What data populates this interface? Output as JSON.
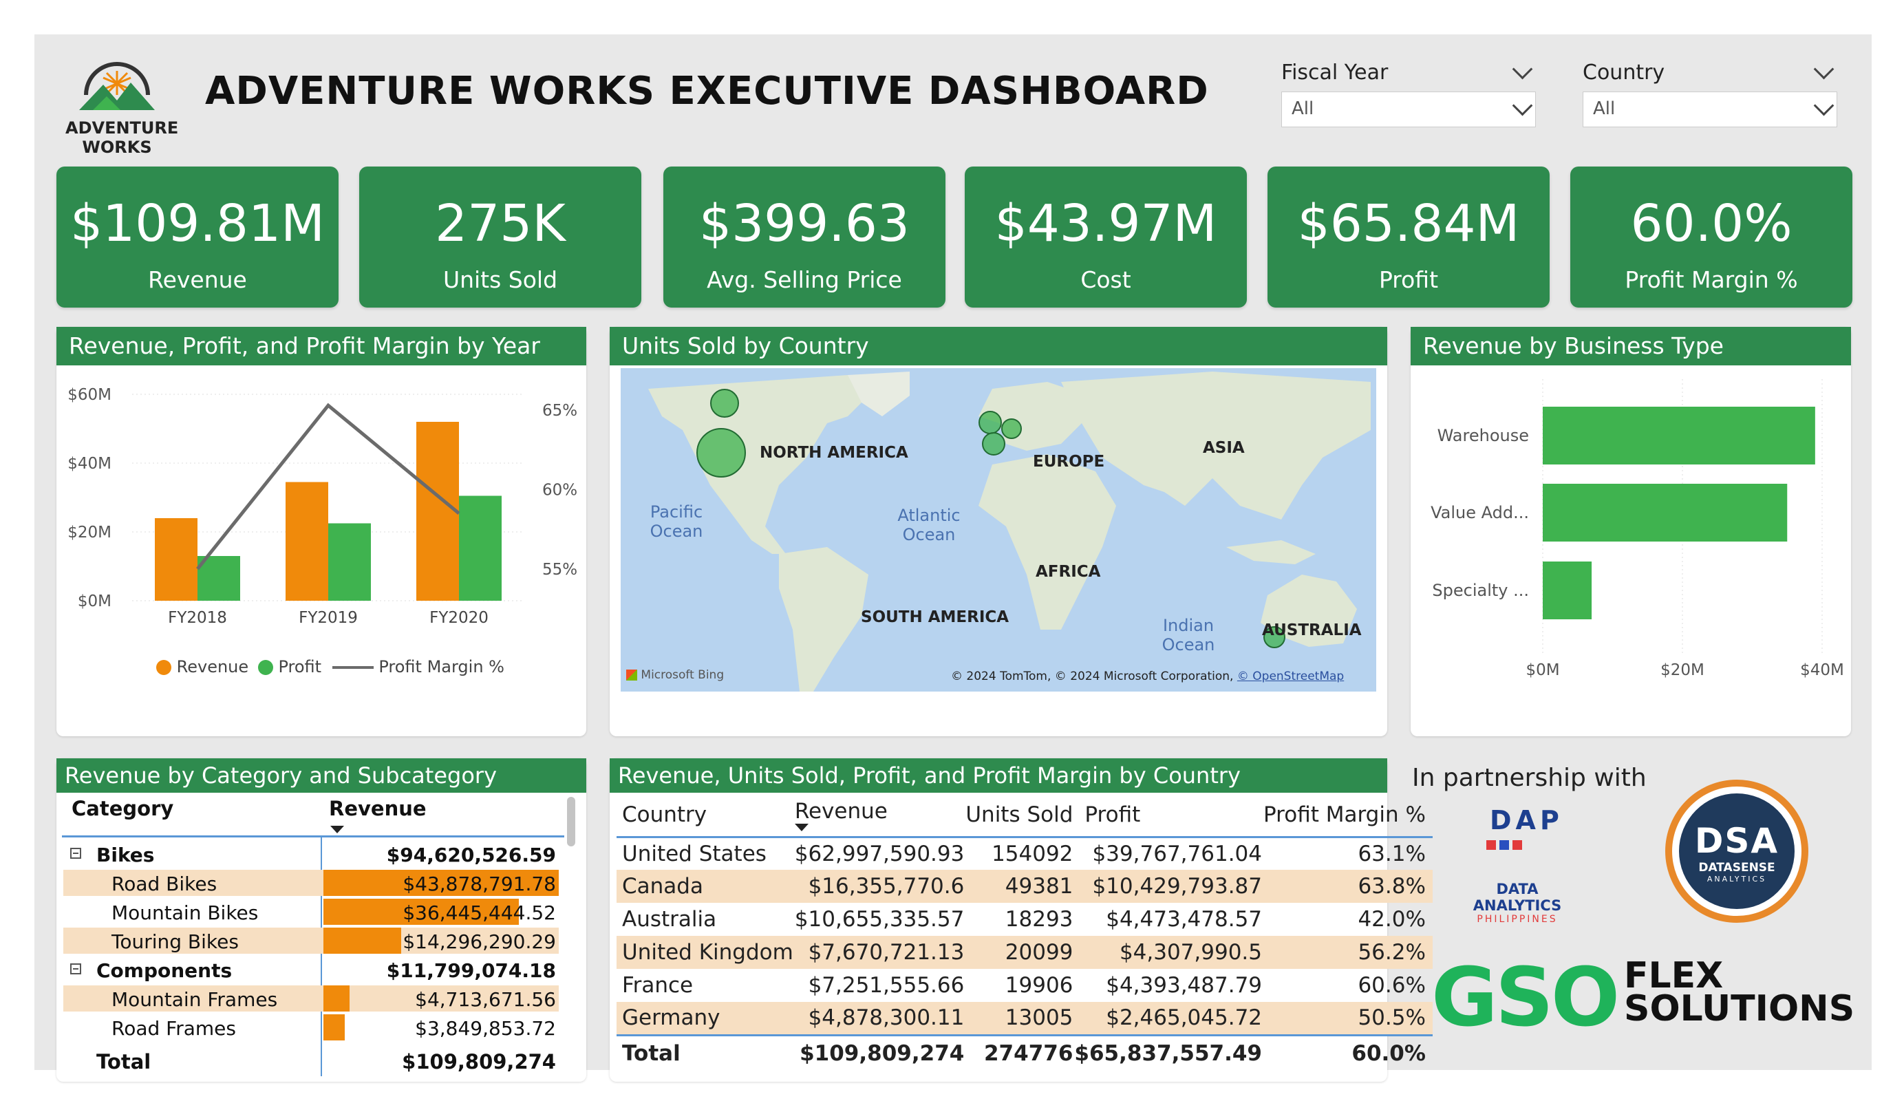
{
  "header": {
    "logo_line1": "ADVENTURE",
    "logo_line2": "WORKS",
    "title": "ADVENTURE WORKS EXECUTIVE DASHBOARD"
  },
  "slicers": [
    {
      "label": "Fiscal Year",
      "value": "All"
    },
    {
      "label": "Country",
      "value": "All"
    }
  ],
  "kpis": [
    {
      "value": "$109.81M",
      "label": "Revenue"
    },
    {
      "value": "275K",
      "label": "Units Sold"
    },
    {
      "value": "$399.63",
      "label": "Avg. Selling Price"
    },
    {
      "value": "$43.97M",
      "label": "Cost"
    },
    {
      "value": "$65.84M",
      "label": "Profit"
    },
    {
      "value": "60.0%",
      "label": "Profit Margin %"
    }
  ],
  "chart_data": [
    {
      "type": "bar",
      "title": "Revenue, Profit, and Profit Margin by Year",
      "categories": [
        "FY2018",
        "FY2019",
        "FY2020"
      ],
      "series": [
        {
          "name": "Revenue",
          "values": [
            24,
            34.5,
            52
          ]
        },
        {
          "name": "Profit",
          "values": [
            13,
            22.5,
            30.5
          ]
        },
        {
          "name": "Profit Margin %",
          "type": "line",
          "axis": "right",
          "values": [
            55.0,
            65.3,
            58.5
          ]
        }
      ],
      "ylim": [
        0,
        60
      ],
      "yticks": [
        "$0M",
        "$20M",
        "$40M",
        "$60M"
      ],
      "y2lim": [
        53,
        66
      ],
      "y2ticks": [
        "55%",
        "60%",
        "65%"
      ],
      "legend": "bottom",
      "colors": {
        "Revenue": "#f08a0b",
        "Profit": "#3fb34f",
        "Profit Margin %": "#6b6b6b"
      }
    },
    {
      "type": "bar",
      "orientation": "horizontal",
      "title": "Revenue by Business Type",
      "categories": [
        "Warehouse",
        "Value Add...",
        "Specialty ..."
      ],
      "values": [
        39,
        35,
        7
      ],
      "xlim": [
        0,
        40
      ],
      "xticks": [
        "$0M",
        "$20M",
        "$40M"
      ],
      "color": "#3fb34f"
    }
  ],
  "map": {
    "title": "Units Sold by Country",
    "labels": {
      "north_america": "NORTH AMERICA",
      "europe": "EUROPE",
      "asia": "ASIA",
      "africa": "AFRICA",
      "south_america": "SOUTH AMERICA",
      "australia": "AUSTRALIA",
      "pacific": "Pacific Ocean",
      "atlantic": "Atlantic Ocean",
      "indian": "Indian Ocean"
    },
    "bing": "Microsoft Bing",
    "credits": "© 2024 TomTom, © 2024 Microsoft Corporation,",
    "osm": "© OpenStreetMap",
    "units": [
      154092,
      49381,
      18293,
      20099,
      19906,
      13005
    ]
  },
  "category_table": {
    "title": "Revenue by Category and Subcategory",
    "col_category": "Category",
    "col_revenue": "Revenue",
    "rows": [
      {
        "kind": "group",
        "name": "Bikes",
        "value": "$94,620,526.59"
      },
      {
        "kind": "sub",
        "name": "Road Bikes",
        "value": "$43,878,791.78",
        "bar": 1.0
      },
      {
        "kind": "sub",
        "name": "Mountain Bikes",
        "value": "$36,445,444.52",
        "bar": 0.83
      },
      {
        "kind": "sub",
        "name": "Touring Bikes",
        "value": "$14,296,290.29",
        "bar": 0.33
      },
      {
        "kind": "group",
        "name": "Components",
        "value": "$11,799,074.18"
      },
      {
        "kind": "sub",
        "name": "Mountain Frames",
        "value": "$4,713,671.56",
        "bar": 0.11
      },
      {
        "kind": "sub",
        "name": "Road Frames",
        "value": "$3,849,853.72",
        "bar": 0.09
      }
    ],
    "total_label": "Total",
    "total_value": "$109,809,274"
  },
  "country_table": {
    "title": "Revenue, Units Sold, Profit, and Profit Margin by Country",
    "headers": [
      "Country",
      "Revenue",
      "Units Sold",
      "Profit",
      "Profit Margin %"
    ],
    "rows": [
      [
        "United States",
        "$62,997,590.93",
        "154092",
        "$39,767,761.04",
        "63.1%"
      ],
      [
        "Canada",
        "$16,355,770.6",
        "49381",
        "$10,429,793.87",
        "63.8%"
      ],
      [
        "Australia",
        "$10,655,335.57",
        "18293",
        "$4,473,478.57",
        "42.0%"
      ],
      [
        "United Kingdom",
        "$7,670,721.13",
        "20099",
        "$4,307,990.5",
        "56.2%"
      ],
      [
        "France",
        "$7,251,555.66",
        "19906",
        "$4,393,487.79",
        "60.6%"
      ],
      [
        "Germany",
        "$4,878,300.11",
        "13005",
        "$2,465,045.72",
        "50.5%"
      ]
    ],
    "total": [
      "Total",
      "$109,809,274",
      "274776",
      "$65,837,557.49",
      "60.0%"
    ]
  },
  "partners": {
    "heading": "In partnership with",
    "dap_letters": "DAP",
    "dap_line1": "DATA ANALYTICS",
    "dap_line2": "PHILIPPINES",
    "dsa_big": "DSA",
    "dsa_line1": "DATASENSE",
    "dsa_line2": "ANALYTICS",
    "gso": "GSO",
    "flex1": "FLEX",
    "flex2": "SOLUTIONS"
  }
}
